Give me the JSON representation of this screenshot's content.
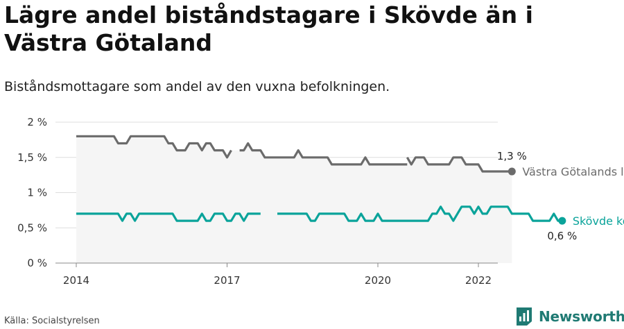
{
  "header": {
    "title": "Lägre andel biståndstagare i Skövde än i Västra Götaland",
    "subtitle": "Biståndsmottagare som andel av den vuxna befolkningen."
  },
  "footer": {
    "source": "Källa: Socialstyrelsen",
    "brand": "Newsworthy",
    "brand_icon": "bar-chart-logo-icon",
    "brand_color": "#1f7a73"
  },
  "chart_data": {
    "type": "line",
    "x_unit": "month",
    "xlim": [
      "2014-01",
      "2022-03"
    ],
    "ylim": [
      0,
      2
    ],
    "yticks": [
      0,
      0.5,
      1,
      1.5,
      2
    ],
    "ytick_labels": [
      "0 %",
      "0,5 %",
      "1 %",
      "1,5 %",
      "2 %"
    ],
    "xticks": [
      "2014-01",
      "2017-01",
      "2020-01",
      "2022-01"
    ],
    "xtick_labels": [
      "2014",
      "2017",
      "2020",
      "2022"
    ],
    "grid": "horizontal",
    "band": {
      "from": 0,
      "to": "Västra Götalands län",
      "color": "#f5f5f5"
    },
    "series": [
      {
        "name": "Västra Götalands län",
        "color": "#6b6b6b",
        "end_label": "1,3 %",
        "segments": [
          {
            "start": "2014-01",
            "values": [
              1.8,
              1.8,
              1.8,
              1.8,
              1.8,
              1.8,
              1.8,
              1.8,
              1.8,
              1.8,
              1.7,
              1.7,
              1.7,
              1.8,
              1.8,
              1.8,
              1.8,
              1.8,
              1.8,
              1.8,
              1.8,
              1.8,
              1.7,
              1.7,
              1.6,
              1.6,
              1.6,
              1.7,
              1.7,
              1.7,
              1.6,
              1.7,
              1.7,
              1.6,
              1.6,
              1.6,
              1.5,
              1.6
            ]
          },
          {
            "start": "2017-04",
            "values": [
              1.6,
              1.6,
              1.7,
              1.6,
              1.6,
              1.6,
              1.5,
              1.5,
              1.5,
              1.5,
              1.5,
              1.5,
              1.5,
              1.5,
              1.6,
              1.5,
              1.5,
              1.5,
              1.5,
              1.5,
              1.5,
              1.5,
              1.4,
              1.4,
              1.4,
              1.4,
              1.4,
              1.4,
              1.4,
              1.4,
              1.5,
              1.4,
              1.4,
              1.4,
              1.4,
              1.4,
              1.4,
              1.4,
              1.4,
              1.4,
              1.4
            ]
          },
          {
            "start": "2020-08",
            "values": [
              1.5,
              1.4,
              1.5,
              1.5,
              1.5,
              1.4,
              1.4,
              1.4,
              1.4,
              1.4,
              1.4,
              1.5,
              1.5,
              1.5,
              1.4,
              1.4,
              1.4,
              1.4,
              1.3,
              1.3,
              1.3,
              1.3,
              1.3,
              1.3,
              1.3,
              1.3
            ]
          }
        ]
      },
      {
        "name": "Skövde kommun",
        "color": "#0aa39a",
        "end_label": "0,6 %",
        "segments": [
          {
            "start": "2014-01",
            "values": [
              0.7,
              0.7,
              0.7,
              0.7,
              0.7,
              0.7,
              0.7,
              0.7,
              0.7,
              0.7,
              0.7,
              0.6,
              0.7,
              0.7,
              0.6,
              0.7,
              0.7,
              0.7,
              0.7,
              0.7,
              0.7,
              0.7,
              0.7,
              0.7,
              0.6,
              0.6,
              0.6,
              0.6,
              0.6,
              0.6,
              0.7,
              0.6,
              0.6,
              0.7,
              0.7,
              0.7,
              0.6,
              0.6,
              0.7,
              0.7,
              0.6,
              0.7,
              0.7,
              0.7,
              0.7
            ]
          },
          {
            "start": "2018-01",
            "values": [
              0.7,
              0.7,
              0.7,
              0.7,
              0.7,
              0.7,
              0.7,
              0.7,
              0.6,
              0.6,
              0.7,
              0.7,
              0.7,
              0.7,
              0.7,
              0.7,
              0.7,
              0.6,
              0.6,
              0.6,
              0.7,
              0.6,
              0.6,
              0.6,
              0.7,
              0.6,
              0.6,
              0.6,
              0.6,
              0.6,
              0.6,
              0.6,
              0.6,
              0.6,
              0.6,
              0.6,
              0.6,
              0.7,
              0.7,
              0.8,
              0.7,
              0.7,
              0.6,
              0.7,
              0.8,
              0.8,
              0.8,
              0.7,
              0.8,
              0.7,
              0.7,
              0.8,
              0.8,
              0.8,
              0.8,
              0.8,
              0.7,
              0.7,
              0.7,
              0.7,
              0.7,
              0.6,
              0.6,
              0.6,
              0.6,
              0.6,
              0.7,
              0.6,
              0.6
            ]
          }
        ]
      }
    ]
  }
}
